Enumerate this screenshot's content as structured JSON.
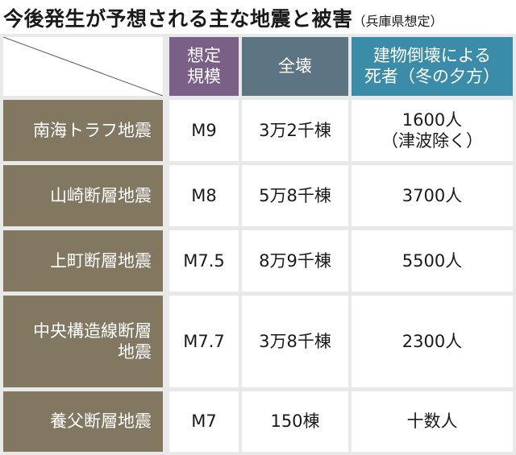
{
  "title": {
    "main": "今後発生が予想される主な地震と被害",
    "sub": "（兵庫県想定）"
  },
  "headers": {
    "scale": [
      "想定",
      "規模"
    ],
    "destroyed": "全壊",
    "deaths": [
      "建物倒壊による",
      "死者（冬の夕方）"
    ]
  },
  "rows": [
    {
      "name": [
        "南海トラフ地震"
      ],
      "magnitude": "M9",
      "destroyed": "3万2千棟",
      "deaths": [
        "1600人",
        "（津波除く）"
      ]
    },
    {
      "name": [
        "山崎断層地震"
      ],
      "magnitude": "M8",
      "destroyed": "5万8千棟",
      "deaths": [
        "3700人"
      ]
    },
    {
      "name": [
        "上町断層地震"
      ],
      "magnitude": "M7.5",
      "destroyed": "8万9千棟",
      "deaths": [
        "5500人"
      ]
    },
    {
      "name": [
        "中央構造線断層",
        "地震"
      ],
      "magnitude": "M7.7",
      "destroyed": "3万8千棟",
      "deaths": [
        "2300人"
      ]
    },
    {
      "name": [
        "養父断層地震"
      ],
      "magnitude": "M7",
      "destroyed": "150棟",
      "deaths": [
        "十数人"
      ]
    }
  ],
  "colors": {
    "scale_header": "#7a5f86",
    "destroyed_header": "#5d7582",
    "deaths_header": "#3a8ca8",
    "row_label": "#827760",
    "gridline": "#e9e9e9"
  }
}
